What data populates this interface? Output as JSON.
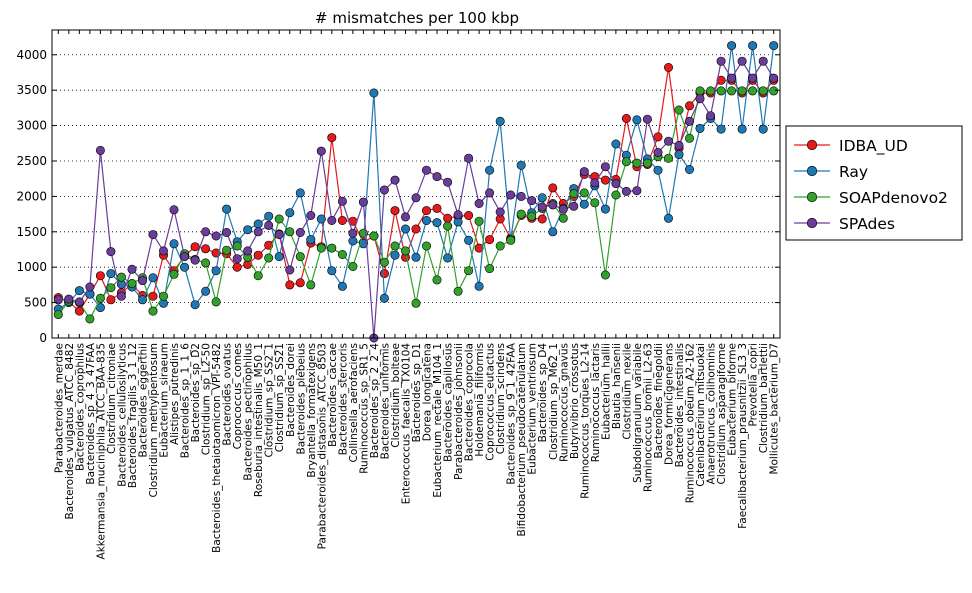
{
  "chart_data": {
    "type": "line",
    "title": "# mismatches per 100 kbp",
    "xlabel": "",
    "ylabel": "",
    "ylim": [
      0,
      4350
    ],
    "yticks": [
      0,
      500,
      1000,
      1500,
      2000,
      2500,
      3000,
      3500,
      4000
    ],
    "grid": "horizontal-dotted",
    "legend_position": "right",
    "categories": [
      "Parabacteroides_merdae",
      "Bacteroides_vulgatus_ATCC_8482",
      "Bacteroides_coprophilus",
      "Bacteroides_sp_4_3_47FAA",
      "Akkermansia_muciniphila_ATCC_BAA-835",
      "Clostridium_citroniae",
      "Bacteroides_cellulosilyticus",
      "Bacteroides_fragilis_3_1_12",
      "Bacteroides_eggerthii",
      "Clostridium_methylpentosum",
      "Eubacterium_siraeum",
      "Alistipes_putredinis",
      "Bacteroides_sp_1_1_6",
      "Bacteroides_sp_D2",
      "Clostridium_sp_L2-50",
      "Bacteroides_thetaiotaomicron_VPI-5482",
      "Bacteroides_ovatus",
      "Coprococcus_comes",
      "Bacteroides_pectinophilus",
      "Roseburia_intestinalis_M50_1",
      "Clostridium_sp_SS2_1",
      "Clostridium_sp_SS21",
      "Bacteroides_dorei",
      "Bacteroides_plebeius",
      "Bryantella_formatexigens",
      "Parabacteroides_distasonis_ATCC_8503",
      "Bacteroides_caccae",
      "Bacteroides_stercoris",
      "Collinsella_aerofaciens",
      "Ruminococcus_sp_SR1_5",
      "Bacteroides_sp_2_2_4",
      "Bacteroides_uniformis",
      "Clostridium_bolteae",
      "Enterococcus_faecalis_TX0104",
      "Bacteroides_sp_D1",
      "Dorea_longicatena",
      "Eubacterium_rectale_M104_1",
      "Bacteroides_capillosus",
      "Parabacteroides_johnsonii",
      "Bacteroides_coprocola",
      "Holdemania_filiformis",
      "Coprococcus_eutactus",
      "Clostridium_scindens",
      "Bacteroides_sp_9_1_42FAA",
      "Bifidobacterium_pseudocatenulatum",
      "Eubacterium_ventriosum",
      "Bacteroides_sp_D4",
      "Clostridium_sp_M62_1",
      "Ruminococcus_gnavus",
      "Butyrivibrio_crossotus",
      "Ruminococcus_torques_L2-14",
      "Ruminococcus_lactaris",
      "Eubacterium_hallii",
      "Blautia_hansenii",
      "Clostridium_nexile",
      "Subdoligranulum_variabile",
      "Ruminococcus_bromii_L2-63",
      "Bacteroides_finegoldii",
      "Dorea_formicigenerans",
      "Bacteroides_intestinalis",
      "Ruminococcus_obeum_A2-162",
      "Catenibacterium_mitsuokai",
      "Anaerotruncus_colihominis",
      "Clostridium_asparagiforme",
      "Eubacterium_biforme",
      "Faecalibacterium_prausnitzii_SL3_3",
      "Prevotella_copri",
      "Clostridium_bartlettii",
      "Mollicutes_bacterium_D7"
    ],
    "series": [
      {
        "name": "IDBA_UD",
        "color": "#e41a1c",
        "values": [
          570,
          510,
          380,
          620,
          880,
          540,
          640,
          760,
          600,
          590,
          1170,
          950,
          1160,
          1290,
          1260,
          1200,
          1190,
          1000,
          1040,
          1170,
          1310,
          1470,
          750,
          780,
          1340,
          1290,
          2830,
          1660,
          1650,
          1350,
          1440,
          910,
          1800,
          1140,
          1540,
          1800,
          1830,
          1690,
          1720,
          1730,
          1270,
          1390,
          1680,
          1410,
          1730,
          1690,
          1680,
          2120,
          1900,
          2000,
          2310,
          2280,
          2230,
          2240,
          3100,
          2420,
          2450,
          2840,
          3820,
          2680,
          3280,
          3460,
          3460,
          3640,
          3640,
          3460,
          3640,
          3460,
          3640
        ]
      },
      {
        "name": "Ray",
        "color": "#1f78b4",
        "values": [
          410,
          500,
          670,
          620,
          430,
          910,
          760,
          720,
          540,
          850,
          490,
          1330,
          1000,
          470,
          660,
          950,
          1820,
          1360,
          1530,
          1610,
          1720,
          1150,
          1770,
          2050,
          1390,
          1680,
          950,
          730,
          1370,
          1330,
          3460,
          560,
          1170,
          1540,
          1140,
          1660,
          1630,
          1130,
          1640,
          1380,
          730,
          2370,
          3060,
          1390,
          2440,
          1770,
          1980,
          1500,
          1830,
          2110,
          1890,
          2150,
          1820,
          2740,
          2580,
          3080,
          2530,
          2370,
          1690,
          2590,
          2380,
          2960,
          3100,
          2950,
          4130,
          2950,
          4130,
          2950,
          4130
        ]
      },
      {
        "name": "SOAPdenovo2",
        "color": "#33a02c",
        "values": [
          330,
          520,
          500,
          270,
          560,
          710,
          860,
          770,
          850,
          380,
          590,
          900,
          1190,
          1110,
          1060,
          510,
          1240,
          1300,
          1140,
          880,
          1130,
          1680,
          1500,
          1150,
          750,
          1270,
          1270,
          1180,
          1010,
          1480,
          1440,
          1070,
          1300,
          1230,
          490,
          1300,
          820,
          1580,
          660,
          950,
          1650,
          980,
          1300,
          1380,
          1750,
          1720,
          1830,
          1900,
          1690,
          2040,
          2050,
          1910,
          890,
          2020,
          2490,
          2470,
          2470,
          2560,
          2540,
          3220,
          2820,
          3490,
          3490,
          3490,
          3490,
          3490,
          3490,
          3490,
          3490
        ]
      },
      {
        "name": "SPAdes",
        "color": "#6a3d9a",
        "values": [
          540,
          550,
          510,
          720,
          2650,
          1220,
          590,
          970,
          810,
          1460,
          1230,
          1810,
          1150,
          1100,
          1500,
          1440,
          1490,
          1120,
          1230,
          1500,
          1590,
          1460,
          960,
          1490,
          1730,
          2640,
          1660,
          1930,
          1480,
          1920,
          0,
          2090,
          2230,
          1710,
          1980,
          2370,
          2280,
          2200,
          1740,
          2540,
          1900,
          2050,
          1780,
          2020,
          2000,
          1940,
          1850,
          1880,
          1820,
          1860,
          2350,
          2190,
          2420,
          2180,
          2070,
          2080,
          3090,
          2620,
          2780,
          2720,
          3060,
          3380,
          3140,
          3910,
          3670,
          3910,
          3670,
          3910,
          3670
        ]
      }
    ]
  }
}
